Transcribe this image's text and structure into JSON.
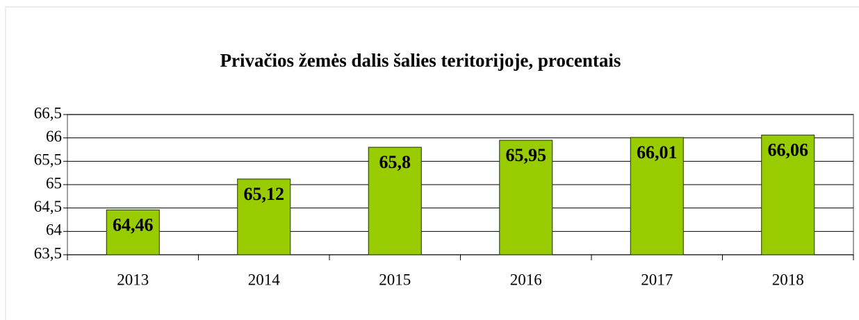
{
  "chart_data": {
    "type": "bar",
    "title": "Privačios žemės dalis šalies teritorijoje,  procentais",
    "categories": [
      "2013",
      "2014",
      "2015",
      "2016",
      "2017",
      "2018"
    ],
    "values": [
      64.46,
      65.12,
      65.8,
      65.95,
      66.01,
      66.06
    ],
    "value_labels": [
      "64,46",
      "65,12",
      "65,8",
      "65,95",
      "66,01",
      "66,06"
    ],
    "color": "#99cc00",
    "ylim": [
      63.5,
      66.5
    ],
    "yticks": [
      {
        "value": 63.5,
        "label": "63,5"
      },
      64,
      {
        "value": 64.5,
        "label": "64,5"
      },
      65,
      {
        "value": 65.5,
        "label": "65,5"
      },
      66,
      {
        "value": 66.5,
        "label": "66,5"
      }
    ],
    "grid": true
  }
}
